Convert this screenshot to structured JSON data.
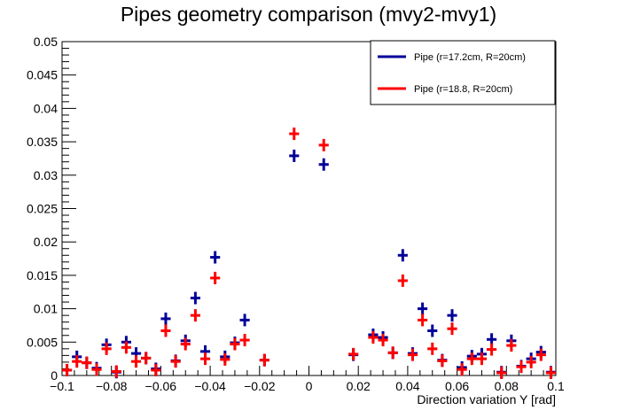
{
  "chart_data": {
    "type": "scatter",
    "title": "Pipes geometry comparison (mvy2-mvy1)",
    "xlabel": "Direction variation Y [rad]",
    "ylabel": "",
    "xlim": [
      -0.1,
      0.1
    ],
    "ylim": [
      0,
      0.05
    ],
    "bin_width": 0.004,
    "x_ticks": [
      -0.1,
      -0.08,
      -0.06,
      -0.04,
      -0.02,
      0,
      0.02,
      0.04,
      0.06,
      0.08,
      0.1
    ],
    "x_tick_labels": [
      "−0.1",
      "−0.08",
      "−0.06",
      "−0.04",
      "−0.02",
      "0",
      "0.02",
      "0.04",
      "0.06",
      "0.08",
      "0.1"
    ],
    "y_ticks": [
      0,
      0.005,
      0.01,
      0.015,
      0.02,
      0.025,
      0.03,
      0.035,
      0.04,
      0.045,
      0.05
    ],
    "y_tick_labels": [
      "0",
      "0.005",
      "0.01",
      "0.015",
      "0.02",
      "0.025",
      "0.03",
      "0.035",
      "0.04",
      "0.045",
      "0.05"
    ],
    "grid": false,
    "legend_position": "top-right",
    "series": [
      {
        "name": "Pipe (r=17.2cm, R=20cm)",
        "color": "#000099",
        "x": [
          -0.098,
          -0.094,
          -0.09,
          -0.086,
          -0.082,
          -0.078,
          -0.074,
          -0.07,
          -0.066,
          -0.062,
          -0.058,
          -0.054,
          -0.05,
          -0.046,
          -0.042,
          -0.038,
          -0.034,
          -0.03,
          -0.026,
          -0.018,
          -0.006,
          0.006,
          0.018,
          0.026,
          0.03,
          0.034,
          0.038,
          0.042,
          0.046,
          0.05,
          0.054,
          0.058,
          0.062,
          0.066,
          0.07,
          0.074,
          0.078,
          0.082,
          0.086,
          0.09,
          0.094,
          0.098
        ],
        "y": [
          0.0008,
          0.0028,
          0.0019,
          0.0011,
          0.0046,
          0.0005,
          0.005,
          0.0033,
          0.0026,
          0.001,
          0.0085,
          0.0022,
          0.0052,
          0.0116,
          0.0036,
          0.0177,
          0.0028,
          0.0049,
          0.0083,
          0.0023,
          0.0329,
          0.0316,
          0.0031,
          0.0061,
          0.0057,
          0.0034,
          0.018,
          0.0033,
          0.01,
          0.0067,
          0.0023,
          0.009,
          0.0012,
          0.0029,
          0.0032,
          0.0054,
          0.0005,
          0.0052,
          0.0014,
          0.0025,
          0.0035,
          0.0005
        ]
      },
      {
        "name": "Pipe (r=18.8, R=20cm)",
        "color": "#ff0000",
        "x": [
          -0.098,
          -0.094,
          -0.09,
          -0.086,
          -0.082,
          -0.078,
          -0.074,
          -0.07,
          -0.066,
          -0.062,
          -0.058,
          -0.054,
          -0.05,
          -0.046,
          -0.042,
          -0.038,
          -0.034,
          -0.03,
          -0.026,
          -0.018,
          -0.006,
          0.006,
          0.018,
          0.026,
          0.03,
          0.034,
          0.038,
          0.042,
          0.046,
          0.05,
          0.054,
          0.058,
          0.062,
          0.066,
          0.07,
          0.074,
          0.078,
          0.082,
          0.086,
          0.09,
          0.094,
          0.098
        ],
        "y": [
          0.0008,
          0.0021,
          0.0019,
          0.0009,
          0.004,
          0.0006,
          0.0042,
          0.0021,
          0.0026,
          0.0008,
          0.0067,
          0.0021,
          0.0047,
          0.009,
          0.0025,
          0.0146,
          0.0024,
          0.0047,
          0.0053,
          0.0023,
          0.0362,
          0.0345,
          0.0032,
          0.0057,
          0.0053,
          0.0034,
          0.0142,
          0.0031,
          0.0083,
          0.004,
          0.0022,
          0.007,
          0.0009,
          0.0025,
          0.0025,
          0.0039,
          0.0004,
          0.0045,
          0.0013,
          0.002,
          0.0031,
          0.0004
        ]
      }
    ]
  }
}
